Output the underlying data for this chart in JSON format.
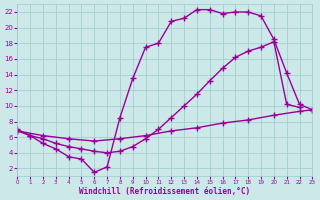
{
  "xlabel": "Windchill (Refroidissement éolien,°C)",
  "background_color": "#cce8e8",
  "grid_color": "#99cccc",
  "line_color": "#990099",
  "xlim": [
    0,
    23
  ],
  "ylim": [
    1,
    23
  ],
  "xticks": [
    0,
    1,
    2,
    3,
    4,
    5,
    6,
    7,
    8,
    9,
    10,
    11,
    12,
    13,
    14,
    15,
    16,
    17,
    18,
    19,
    20,
    21,
    22,
    23
  ],
  "yticks": [
    2,
    4,
    6,
    8,
    10,
    12,
    14,
    16,
    18,
    20,
    22
  ],
  "line1_x": [
    0,
    1,
    2,
    3,
    4,
    5,
    6,
    7,
    8,
    9,
    10,
    11,
    12,
    13,
    14,
    15,
    16,
    17,
    18,
    19,
    20,
    21,
    22,
    23
  ],
  "line1_y": [
    7,
    6.2,
    5.2,
    4.5,
    3.5,
    3.2,
    1.5,
    2.2,
    8.5,
    13.5,
    17.5,
    18,
    20.8,
    21.2,
    22.3,
    22.3,
    21.8,
    22,
    22,
    21.5,
    18.5,
    14.2,
    10.2,
    9.5
  ],
  "line2_x": [
    0,
    1,
    2,
    3,
    4,
    5,
    6,
    7,
    8,
    9,
    10,
    11,
    12,
    13,
    14,
    15,
    16,
    17,
    18,
    19,
    20,
    21,
    22
  ],
  "line2_y": [
    6.8,
    6.2,
    5.8,
    5.2,
    4.8,
    4.5,
    4.2,
    4.0,
    4.2,
    4.8,
    5.8,
    7,
    8.5,
    10,
    11.5,
    13.2,
    14.8,
    16.2,
    17.0,
    17.5,
    18.2,
    10.2,
    9.8
  ],
  "line3_x": [
    0,
    2,
    4,
    6,
    8,
    10,
    12,
    14,
    16,
    18,
    20,
    22,
    23
  ],
  "line3_y": [
    6.8,
    6.2,
    5.8,
    5.5,
    5.8,
    6.2,
    6.8,
    7.2,
    7.8,
    8.2,
    8.8,
    9.3,
    9.5
  ],
  "marker": "+",
  "markersize": 4,
  "linewidth": 1.0
}
